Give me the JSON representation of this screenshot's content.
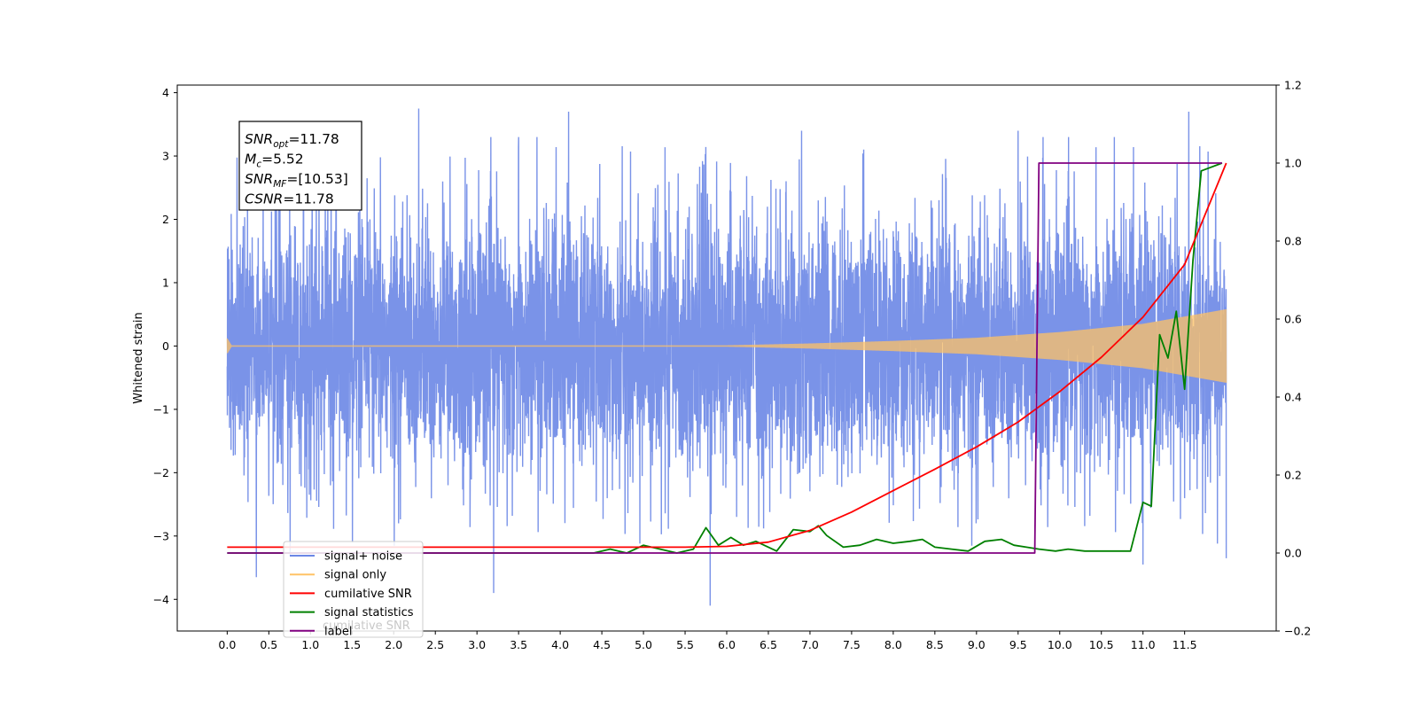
{
  "chart_data": {
    "type": "line",
    "x": {
      "ticks": [
        0.0,
        0.5,
        1.0,
        1.5,
        2.0,
        2.5,
        3.0,
        3.5,
        4.0,
        4.5,
        5.0,
        5.5,
        6.0,
        6.5,
        7.0,
        7.5,
        8.0,
        8.5,
        9.0,
        9.5,
        10.0,
        10.5,
        11.0,
        11.5
      ],
      "tick_labels": [
        "0.0",
        "0.5",
        "1.0",
        "1.5",
        "2.0",
        "2.5",
        "3.0",
        "3.5",
        "4.0",
        "4.5",
        "5.0",
        "5.5",
        "6.0",
        "6.5",
        "7.0",
        "7.5",
        "8.0",
        "8.5",
        "9.0",
        "9.5",
        "10.0",
        "10.5",
        "11.0",
        "11.5"
      ],
      "range": [
        -0.6,
        12.6
      ]
    },
    "y_left": {
      "label": "Whitened strain",
      "ticks": [
        -4,
        -3,
        -2,
        -1,
        0,
        1,
        2,
        3,
        4
      ],
      "tick_labels": [
        "−4",
        "−3",
        "−2",
        "−1",
        "0",
        "1",
        "2",
        "3",
        "4"
      ],
      "range": [
        -4.5,
        4.12
      ]
    },
    "y_right": {
      "ticks": [
        -0.2,
        0.0,
        0.2,
        0.4,
        0.6,
        0.8,
        1.0,
        1.2
      ],
      "tick_labels": [
        "−0.2",
        "0.0",
        "0.2",
        "0.4",
        "0.6",
        "0.8",
        "1.0",
        "1.2"
      ],
      "range": [
        -0.2,
        1.2
      ]
    },
    "legend": {
      "placement": "lower-left",
      "entries": [
        {
          "label": "signal+ noise",
          "color": "#6b87e6"
        },
        {
          "label": "signal only",
          "color": "#ffc266"
        },
        {
          "label": "cumilative SNR",
          "color": "#ff0000"
        },
        {
          "label": "signal statistics",
          "color": "#008000"
        },
        {
          "label": "label",
          "color": "#800080"
        }
      ],
      "ghost_text": "cumilative SNR"
    },
    "stats_box": {
      "lines": [
        {
          "main": "SNR",
          "sub": "opt",
          "value": "=11.78"
        },
        {
          "main": "M",
          "sub": "c",
          "value": "=5.52"
        },
        {
          "main": "SNR",
          "sub": "MF",
          "value": "=[10.53]"
        },
        {
          "main": "CSNR",
          "sub": "",
          "value": "=11.78"
        }
      ]
    },
    "series": [
      {
        "name": "signal+ noise",
        "axis": "left",
        "color": "#6b87e6",
        "x_range": [
          0.0,
          12.0
        ],
        "envelope_lower": -2.0,
        "envelope_upper": 2.0,
        "spikes": [
          {
            "x": 2.3,
            "y": 3.75
          },
          {
            "x": 4.1,
            "y": 3.7
          },
          {
            "x": 11.55,
            "y": 3.7
          },
          {
            "x": 3.5,
            "y": 3.3
          },
          {
            "x": 9.5,
            "y": 3.4
          },
          {
            "x": 9.8,
            "y": 3.3
          },
          {
            "x": 6.9,
            "y": 3.4
          },
          {
            "x": 5.8,
            "y": -4.1
          },
          {
            "x": 3.2,
            "y": -3.9
          },
          {
            "x": 0.35,
            "y": -3.65
          },
          {
            "x": 11.0,
            "y": -3.45
          },
          {
            "x": 12.0,
            "y": -3.35
          }
        ]
      },
      {
        "name": "signal only",
        "axis": "left",
        "color": "#ffc266",
        "x": [
          0.0,
          0.05,
          6.0,
          7.0,
          8.0,
          9.0,
          10.0,
          11.0,
          12.0
        ],
        "amplitude": [
          0.12,
          0.01,
          0.01,
          0.04,
          0.08,
          0.13,
          0.22,
          0.35,
          0.58
        ]
      },
      {
        "name": "cumilative SNR",
        "axis": "right",
        "color": "#ff0000",
        "x": [
          0.0,
          1.0,
          2.0,
          3.0,
          4.0,
          5.0,
          5.5,
          6.0,
          6.5,
          7.0,
          7.5,
          8.0,
          8.5,
          9.0,
          9.5,
          10.0,
          10.5,
          11.0,
          11.5,
          12.0
        ],
        "y": [
          0.015,
          0.015,
          0.015,
          0.015,
          0.015,
          0.015,
          0.015,
          0.017,
          0.028,
          0.058,
          0.105,
          0.16,
          0.215,
          0.272,
          0.336,
          0.414,
          0.502,
          0.605,
          0.74,
          1.0
        ]
      },
      {
        "name": "signal statistics",
        "axis": "right",
        "color": "#008000",
        "x": [
          0.0,
          1.0,
          2.0,
          3.0,
          4.0,
          4.4,
          4.6,
          4.8,
          5.0,
          5.2,
          5.4,
          5.6,
          5.75,
          5.9,
          6.05,
          6.2,
          6.35,
          6.6,
          6.8,
          7.0,
          7.1,
          7.2,
          7.4,
          7.6,
          7.8,
          8.0,
          8.2,
          8.35,
          8.5,
          8.7,
          8.9,
          9.1,
          9.3,
          9.45,
          9.6,
          9.75,
          9.95,
          10.1,
          10.3,
          10.6,
          10.85,
          11.0,
          11.1,
          11.2,
          11.3,
          11.4,
          11.5,
          11.6,
          11.7,
          11.95
        ],
        "y": [
          0.0,
          0.0,
          0.0,
          0.0,
          0.0,
          0.0,
          0.01,
          0.0,
          0.02,
          0.01,
          0.0,
          0.01,
          0.065,
          0.02,
          0.04,
          0.02,
          0.03,
          0.005,
          0.06,
          0.055,
          0.07,
          0.045,
          0.015,
          0.02,
          0.035,
          0.025,
          0.03,
          0.035,
          0.015,
          0.01,
          0.005,
          0.03,
          0.035,
          0.02,
          0.015,
          0.01,
          0.005,
          0.01,
          0.005,
          0.005,
          0.005,
          0.13,
          0.12,
          0.56,
          0.5,
          0.62,
          0.42,
          0.75,
          0.98,
          1.0
        ]
      },
      {
        "name": "label",
        "axis": "right",
        "color": "#800080",
        "x": [
          0.0,
          9.7,
          9.75,
          11.95
        ],
        "y": [
          0.0,
          0.0,
          1.0,
          1.0
        ]
      }
    ]
  }
}
